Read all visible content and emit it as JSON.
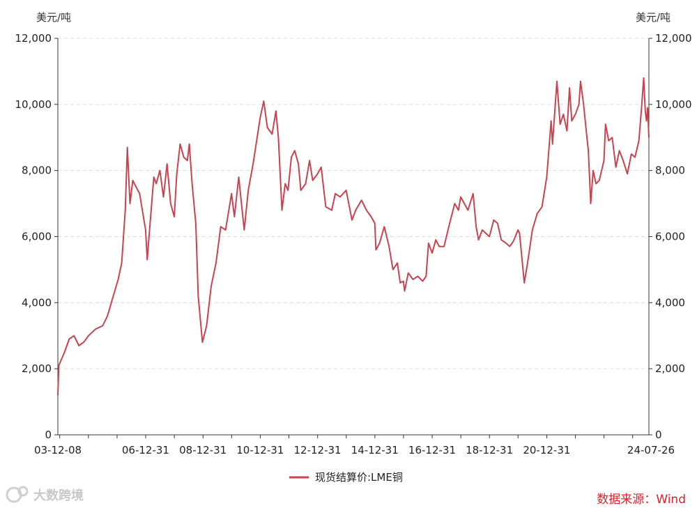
{
  "chart_data": {
    "type": "line",
    "left_unit": "美元/吨",
    "right_unit": "美元/吨",
    "ylim": [
      0,
      12000
    ],
    "yticks": [
      "0",
      "2,000",
      "4,000",
      "6,000",
      "8,000",
      "10,000",
      "12,000"
    ],
    "xticks": [
      "03-12-08",
      "06-12-31",
      "08-12-31",
      "10-12-31",
      "12-12-31",
      "14-12-31",
      "16-12-31",
      "18-12-31",
      "20-12-31",
      "24-07-26"
    ],
    "grid": "horizontal-dashed",
    "legend_position": "bottom-center",
    "series": [
      {
        "name": "现货结算价:LME铜",
        "color": "#c8424f",
        "points": [
          [
            "03-12-08",
            1200
          ],
          [
            "03-12-20",
            2100
          ],
          [
            "04-03-01",
            2500
          ],
          [
            "04-05-01",
            2900
          ],
          [
            "04-07-01",
            3000
          ],
          [
            "04-09-01",
            2700
          ],
          [
            "04-11-01",
            2800
          ],
          [
            "05-01-01",
            3000
          ],
          [
            "05-04-01",
            3200
          ],
          [
            "05-07-01",
            3300
          ],
          [
            "05-09-01",
            3600
          ],
          [
            "05-11-01",
            4100
          ],
          [
            "06-01-15",
            4700
          ],
          [
            "06-03-01",
            5200
          ],
          [
            "06-04-15",
            6800
          ],
          [
            "06-05-12",
            8700
          ],
          [
            "06-06-15",
            7000
          ],
          [
            "06-07-20",
            7700
          ],
          [
            "06-09-01",
            7500
          ],
          [
            "06-10-15",
            7300
          ],
          [
            "06-12-31",
            6200
          ],
          [
            "07-01-20",
            5300
          ],
          [
            "07-03-01",
            6500
          ],
          [
            "07-04-15",
            7800
          ],
          [
            "07-05-15",
            7600
          ],
          [
            "07-07-01",
            8000
          ],
          [
            "07-08-15",
            7200
          ],
          [
            "07-10-01",
            8200
          ],
          [
            "07-11-15",
            7000
          ],
          [
            "07-12-31",
            6600
          ],
          [
            "08-02-01",
            7900
          ],
          [
            "08-03-15",
            8800
          ],
          [
            "08-05-01",
            8400
          ],
          [
            "08-06-15",
            8300
          ],
          [
            "08-07-10",
            8800
          ],
          [
            "08-08-15",
            7600
          ],
          [
            "08-10-01",
            6400
          ],
          [
            "08-11-01",
            4200
          ],
          [
            "08-12-24",
            2800
          ],
          [
            "09-02-15",
            3300
          ],
          [
            "09-04-15",
            4500
          ],
          [
            "09-06-15",
            5200
          ],
          [
            "09-08-15",
            6300
          ],
          [
            "09-10-15",
            6200
          ],
          [
            "09-12-31",
            7300
          ],
          [
            "10-02-05",
            6600
          ],
          [
            "10-04-01",
            7800
          ],
          [
            "10-05-15",
            6800
          ],
          [
            "10-06-10",
            6200
          ],
          [
            "10-08-01",
            7400
          ],
          [
            "10-10-01",
            8200
          ],
          [
            "10-12-31",
            9600
          ],
          [
            "11-02-14",
            10100
          ],
          [
            "11-04-01",
            9300
          ],
          [
            "11-06-01",
            9100
          ],
          [
            "11-07-20",
            9800
          ],
          [
            "11-08-20",
            9000
          ],
          [
            "11-10-04",
            6800
          ],
          [
            "11-11-15",
            7600
          ],
          [
            "11-12-20",
            7400
          ],
          [
            "12-02-01",
            8400
          ],
          [
            "12-03-15",
            8600
          ],
          [
            "12-05-01",
            8200
          ],
          [
            "12-06-01",
            7400
          ],
          [
            "12-08-01",
            7600
          ],
          [
            "12-09-20",
            8300
          ],
          [
            "12-10-30",
            7700
          ],
          [
            "12-12-31",
            7900
          ],
          [
            "13-02-15",
            8100
          ],
          [
            "13-04-15",
            6900
          ],
          [
            "13-06-30",
            6800
          ],
          [
            "13-08-15",
            7300
          ],
          [
            "13-10-15",
            7200
          ],
          [
            "13-12-31",
            7400
          ],
          [
            "14-03-15",
            6500
          ],
          [
            "14-05-01",
            6800
          ],
          [
            "14-07-15",
            7100
          ],
          [
            "14-09-15",
            6800
          ],
          [
            "14-11-15",
            6600
          ],
          [
            "14-12-31",
            6400
          ],
          [
            "15-01-15",
            5600
          ],
          [
            "15-03-01",
            5800
          ],
          [
            "15-05-01",
            6300
          ],
          [
            "15-07-01",
            5700
          ],
          [
            "15-08-20",
            5000
          ],
          [
            "15-10-15",
            5200
          ],
          [
            "15-11-20",
            4600
          ],
          [
            "15-12-31",
            4650
          ],
          [
            "16-01-15",
            4350
          ],
          [
            "16-03-01",
            4900
          ],
          [
            "16-05-01",
            4700
          ],
          [
            "16-07-01",
            4800
          ],
          [
            "16-09-01",
            4650
          ],
          [
            "16-10-15",
            4800
          ],
          [
            "16-11-15",
            5800
          ],
          [
            "16-12-31",
            5500
          ],
          [
            "17-02-15",
            5900
          ],
          [
            "17-04-01",
            5700
          ],
          [
            "17-06-01",
            5700
          ],
          [
            "17-08-01",
            6300
          ],
          [
            "17-10-15",
            7000
          ],
          [
            "17-12-01",
            6800
          ],
          [
            "17-12-31",
            7200
          ],
          [
            "18-02-15",
            7000
          ],
          [
            "18-04-01",
            6800
          ],
          [
            "18-06-07",
            7300
          ],
          [
            "18-07-15",
            6300
          ],
          [
            "18-08-15",
            5900
          ],
          [
            "18-10-01",
            6200
          ],
          [
            "18-12-31",
            6000
          ],
          [
            "19-02-25",
            6500
          ],
          [
            "19-04-15",
            6400
          ],
          [
            "19-06-01",
            5900
          ],
          [
            "19-08-01",
            5800
          ],
          [
            "19-09-15",
            5700
          ],
          [
            "19-11-01",
            5850
          ],
          [
            "19-12-31",
            6200
          ],
          [
            "20-01-20",
            6100
          ],
          [
            "20-03-20",
            4600
          ],
          [
            "20-05-01",
            5200
          ],
          [
            "20-07-01",
            6200
          ],
          [
            "20-09-01",
            6700
          ],
          [
            "20-11-01",
            6900
          ],
          [
            "20-12-31",
            7800
          ],
          [
            "21-02-25",
            9500
          ],
          [
            "21-03-15",
            8800
          ],
          [
            "21-05-10",
            10700
          ],
          [
            "21-06-20",
            9400
          ],
          [
            "21-08-01",
            9700
          ],
          [
            "21-09-15",
            9200
          ],
          [
            "21-10-18",
            10500
          ],
          [
            "21-11-15",
            9500
          ],
          [
            "21-12-31",
            9700
          ],
          [
            "22-02-15",
            10000
          ],
          [
            "22-03-07",
            10700
          ],
          [
            "22-04-15",
            10000
          ],
          [
            "22-05-15",
            9300
          ],
          [
            "22-06-15",
            8600
          ],
          [
            "22-07-15",
            7000
          ],
          [
            "22-08-15",
            8000
          ],
          [
            "22-09-20",
            7600
          ],
          [
            "22-11-01",
            7700
          ],
          [
            "22-12-31",
            8300
          ],
          [
            "23-01-20",
            9400
          ],
          [
            "23-03-01",
            8900
          ],
          [
            "23-04-15",
            9000
          ],
          [
            "23-06-01",
            8100
          ],
          [
            "23-07-15",
            8600
          ],
          [
            "23-09-01",
            8300
          ],
          [
            "23-10-25",
            7900
          ],
          [
            "23-12-15",
            8500
          ],
          [
            "24-01-30",
            8400
          ],
          [
            "24-03-20",
            8900
          ],
          [
            "24-04-20",
            9800
          ],
          [
            "24-05-20",
            10800
          ],
          [
            "24-06-10",
            9800
          ],
          [
            "24-06-25",
            9500
          ],
          [
            "24-07-10",
            9900
          ],
          [
            "24-07-26",
            9000
          ]
        ]
      }
    ]
  },
  "source_label": "数据来源：Wind",
  "watermark": "大数跨境"
}
